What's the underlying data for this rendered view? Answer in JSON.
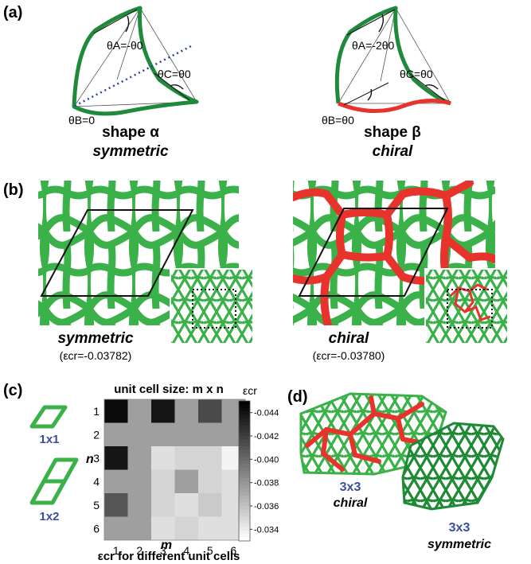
{
  "panel_a": {
    "label": "(a)",
    "shape_alpha": {
      "theta_a": "θA=-θ0",
      "theta_b": "θB=0",
      "theta_c": "θC=θ0",
      "title": "shape α",
      "subtitle": "symmetric"
    },
    "shape_beta": {
      "theta_a": "θA=-2θ0",
      "theta_b": "θB=θ0",
      "theta_c": "θC=θ0",
      "title": "shape β",
      "subtitle": "chiral"
    }
  },
  "panel_b": {
    "label": "(b)",
    "left_caption": "symmetric",
    "left_value": "(εcr=-0.03782)",
    "right_caption": "chiral",
    "right_value": "(εcr=-0.03780)"
  },
  "panel_c": {
    "label": "(c)",
    "cell_1x1": "1x1",
    "cell_1x2": "1x2",
    "title": "unit cell size: m x n",
    "n_label": "n",
    "m_label": "m",
    "x_caption": "εcr for different unit cells",
    "colorbar_title": "εcr",
    "colorbar_ticks": [
      "-0.044",
      "-0.042",
      "-0.040",
      "-0.038",
      "-0.036",
      "-0.034"
    ]
  },
  "panel_d": {
    "label": "(d)",
    "left_size": "3x3",
    "left_type": "chiral",
    "right_size": "3x3",
    "right_type": "symmetric"
  },
  "colors": {
    "green": "#3bb14a",
    "dark_green": "#1e8a36",
    "red": "#e8332c",
    "blue_label": "#3a4ea0",
    "dotted_blue": "#2b3fa8"
  },
  "chart_data": {
    "type": "heatmap",
    "title": "unit cell size: m x n",
    "xlabel": "m",
    "ylabel": "n",
    "x": [
      1,
      2,
      3,
      4,
      5,
      6
    ],
    "y": [
      1,
      2,
      3,
      4,
      5,
      6
    ],
    "z_label": "εcr",
    "zlim": [
      -0.045,
      -0.033
    ],
    "values": [
      [
        -0.0445,
        -0.0375,
        -0.044,
        -0.0375,
        -0.0415,
        -0.0375
      ],
      [
        -0.0375,
        -0.0375,
        -0.0375,
        -0.0375,
        -0.0375,
        -0.0375
      ],
      [
        -0.044,
        -0.0375,
        -0.0345,
        -0.035,
        -0.035,
        -0.0335
      ],
      [
        -0.0375,
        -0.0375,
        -0.035,
        -0.0375,
        -0.035,
        -0.0345
      ],
      [
        -0.041,
        -0.0375,
        -0.035,
        -0.0345,
        -0.0355,
        -0.0345
      ],
      [
        -0.0375,
        -0.0375,
        -0.0345,
        -0.035,
        -0.0345,
        -0.0345
      ]
    ]
  }
}
